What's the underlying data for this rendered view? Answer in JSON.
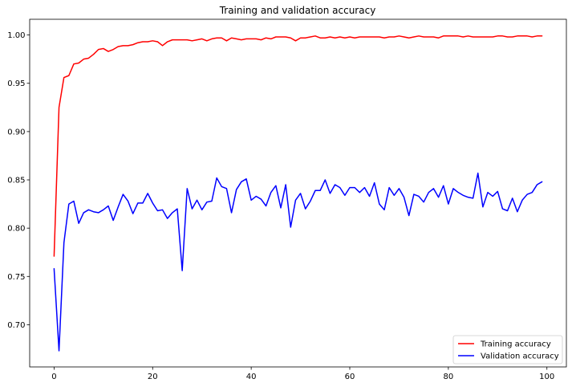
{
  "chart_data": {
    "type": "line",
    "title": "Training and validation accuracy",
    "xlabel": "",
    "ylabel": "",
    "xlim": [
      -4.95,
      103.95
    ],
    "ylim": [
      0.6563,
      1.0163
    ],
    "x_ticks": [
      0,
      20,
      40,
      60,
      80,
      100
    ],
    "y_ticks": [
      0.7,
      0.75,
      0.8,
      0.85,
      0.9,
      0.95,
      1.0
    ],
    "grid": false,
    "legend_position": "lower right",
    "series": [
      {
        "name": "Training accuracy",
        "color": "#ff0000",
        "values": [
          0.771,
          0.925,
          0.956,
          0.958,
          0.97,
          0.971,
          0.975,
          0.976,
          0.98,
          0.985,
          0.986,
          0.983,
          0.985,
          0.988,
          0.989,
          0.989,
          0.99,
          0.992,
          0.993,
          0.993,
          0.994,
          0.993,
          0.989,
          0.993,
          0.995,
          0.995,
          0.995,
          0.995,
          0.994,
          0.995,
          0.996,
          0.994,
          0.996,
          0.997,
          0.997,
          0.994,
          0.997,
          0.996,
          0.995,
          0.996,
          0.996,
          0.996,
          0.995,
          0.997,
          0.996,
          0.998,
          0.998,
          0.998,
          0.997,
          0.994,
          0.997,
          0.997,
          0.998,
          0.999,
          0.997,
          0.997,
          0.998,
          0.997,
          0.998,
          0.997,
          0.998,
          0.997,
          0.998,
          0.998,
          0.998,
          0.998,
          0.998,
          0.997,
          0.998,
          0.998,
          0.999,
          0.998,
          0.997,
          0.998,
          0.999,
          0.998,
          0.998,
          0.998,
          0.997,
          0.999,
          0.999,
          0.999,
          0.999,
          0.998,
          0.999,
          0.998,
          0.998,
          0.998,
          0.998,
          0.998,
          0.999,
          0.999,
          0.998,
          0.998,
          0.999,
          0.999,
          0.999,
          0.998,
          0.999,
          0.999
        ]
      },
      {
        "name": "Validation accuracy",
        "color": "#0000ff",
        "values": [
          0.758,
          0.673,
          0.785,
          0.825,
          0.828,
          0.805,
          0.816,
          0.819,
          0.817,
          0.816,
          0.819,
          0.823,
          0.808,
          0.822,
          0.835,
          0.828,
          0.815,
          0.826,
          0.826,
          0.836,
          0.826,
          0.818,
          0.819,
          0.81,
          0.816,
          0.82,
          0.756,
          0.841,
          0.82,
          0.829,
          0.819,
          0.827,
          0.828,
          0.852,
          0.843,
          0.841,
          0.816,
          0.84,
          0.848,
          0.851,
          0.829,
          0.833,
          0.83,
          0.823,
          0.837,
          0.844,
          0.821,
          0.845,
          0.801,
          0.829,
          0.836,
          0.82,
          0.828,
          0.839,
          0.839,
          0.85,
          0.836,
          0.845,
          0.842,
          0.834,
          0.842,
          0.842,
          0.837,
          0.842,
          0.833,
          0.847,
          0.825,
          0.819,
          0.842,
          0.834,
          0.841,
          0.832,
          0.813,
          0.835,
          0.833,
          0.827,
          0.837,
          0.841,
          0.832,
          0.844,
          0.825,
          0.841,
          0.837,
          0.834,
          0.832,
          0.831,
          0.857,
          0.822,
          0.837,
          0.833,
          0.838,
          0.82,
          0.818,
          0.831,
          0.817,
          0.829,
          0.835,
          0.837,
          0.845,
          0.848
        ]
      }
    ]
  }
}
